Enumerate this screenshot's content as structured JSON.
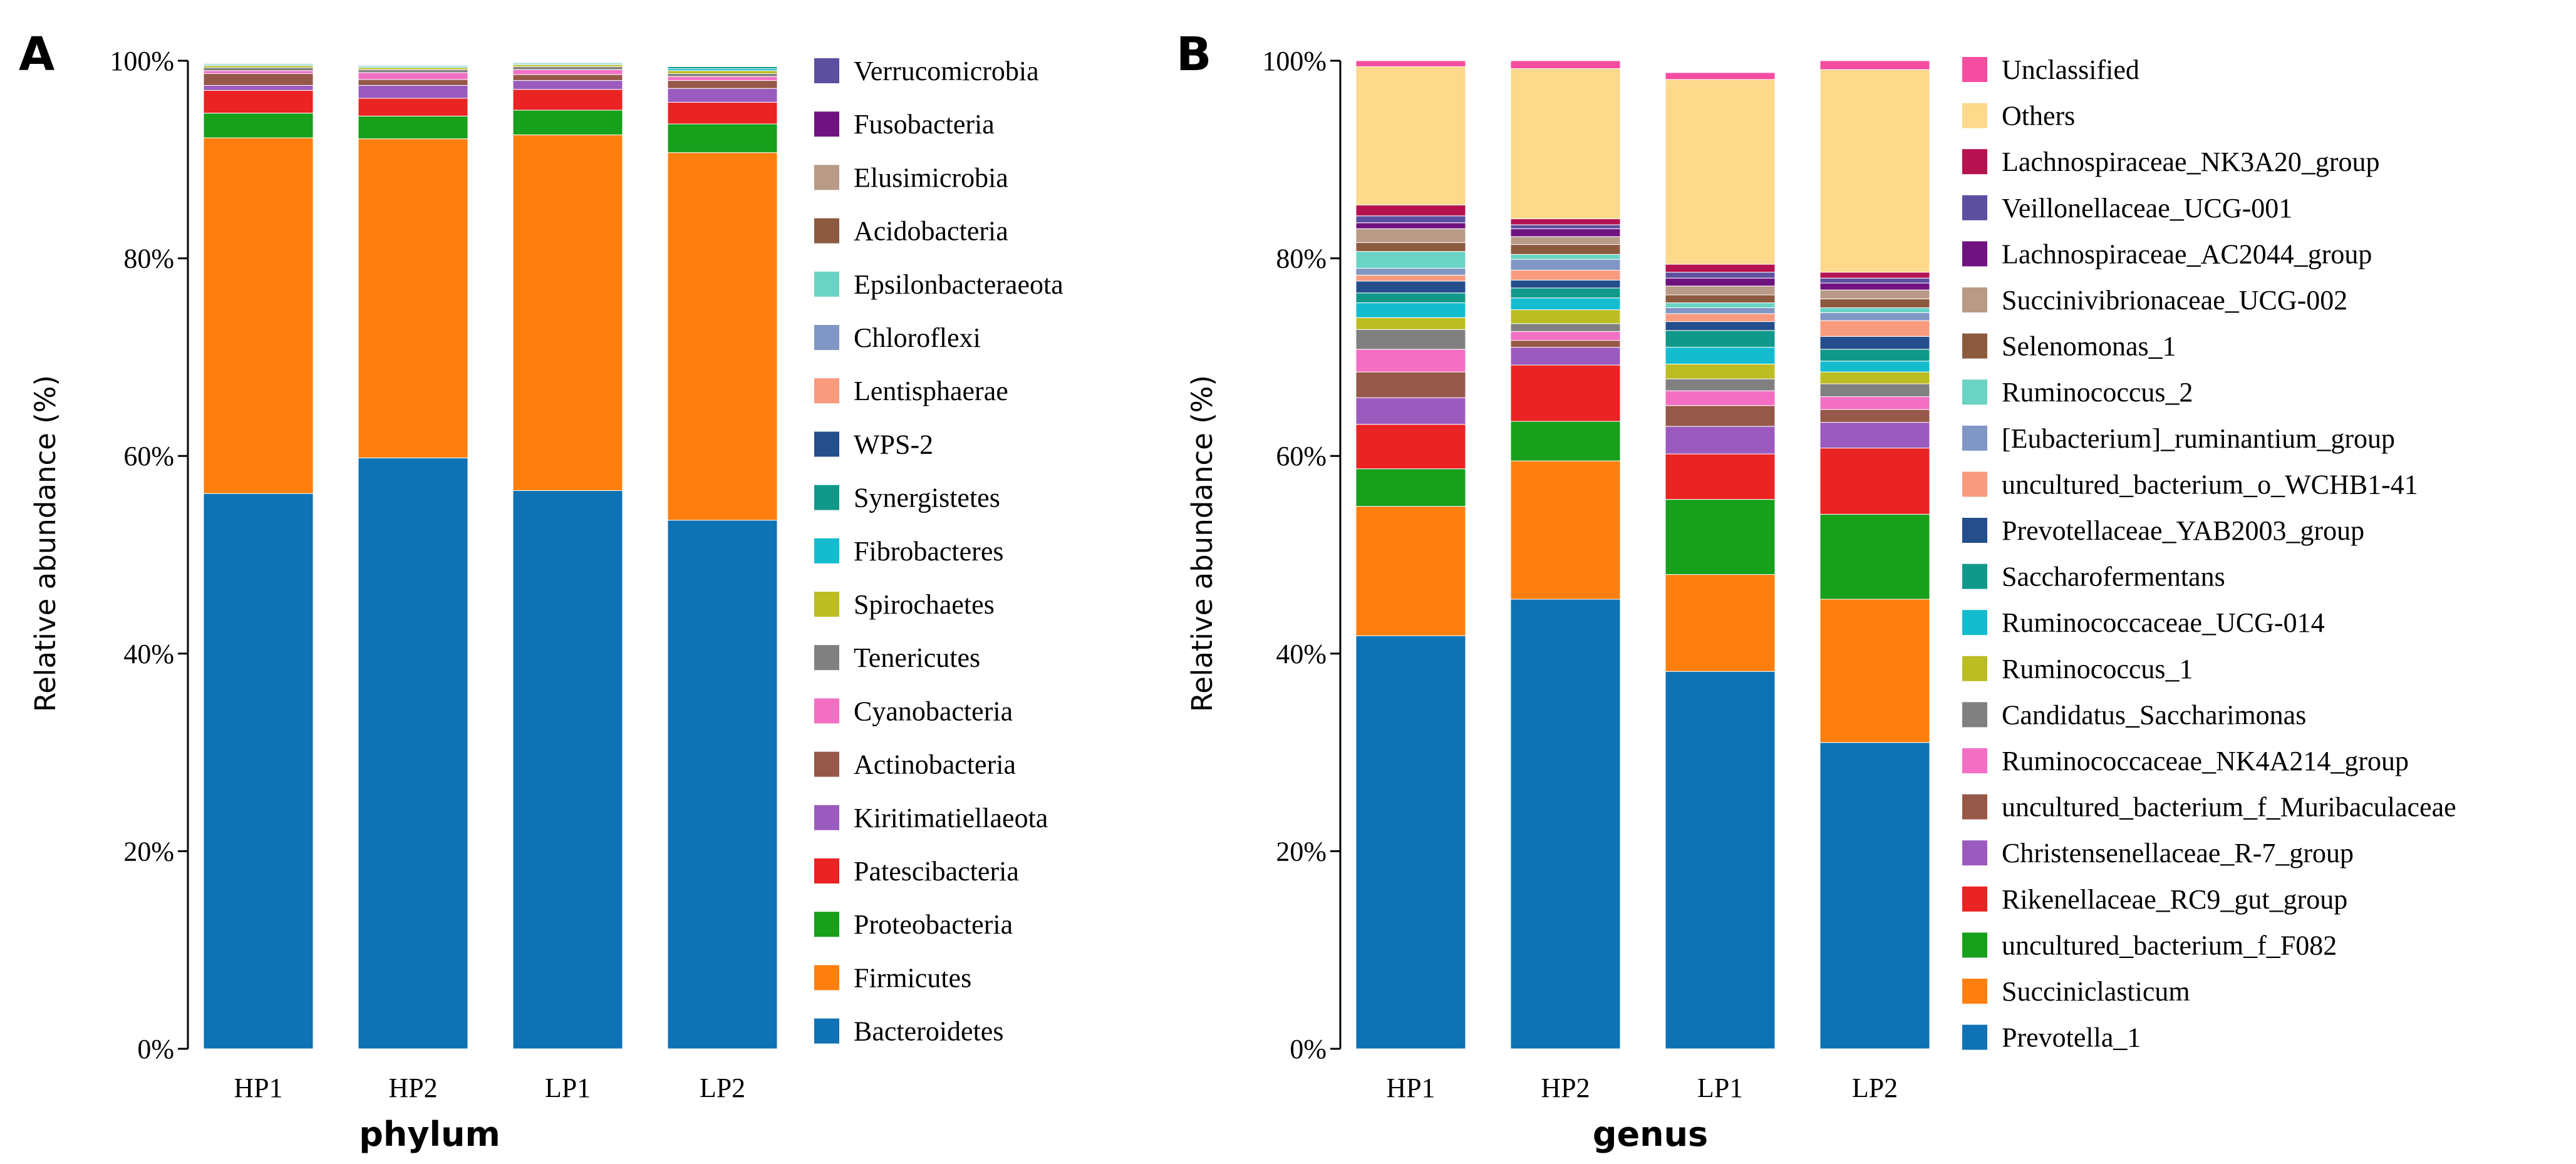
{
  "chart_data": [
    {
      "panel": "A",
      "type": "bar",
      "stacked": true,
      "xlabel": "phylum",
      "ylabel": "Relative abundance (%)",
      "ylim": [
        0,
        100
      ],
      "yticks": [
        0,
        20,
        40,
        60,
        80,
        100
      ],
      "ytick_labels": [
        "0%",
        "20%",
        "40%",
        "60%",
        "80%",
        "100%"
      ],
      "categories": [
        "HP1",
        "HP2",
        "LP1",
        "LP2"
      ],
      "series": [
        {
          "name": "Bacteroidetes",
          "color": "#0e72b5",
          "values": [
            56.2,
            59.8,
            56.5,
            53.5
          ]
        },
        {
          "name": "Firmicutes",
          "color": "#ff7f0e",
          "values": [
            36.0,
            32.3,
            36.0,
            37.2
          ]
        },
        {
          "name": "Proteobacteria",
          "color": "#16a01b",
          "values": [
            2.5,
            2.3,
            2.5,
            2.9
          ]
        },
        {
          "name": "Patescibacteria",
          "color": "#ea2323",
          "values": [
            2.3,
            1.8,
            2.1,
            2.2
          ]
        },
        {
          "name": "Kiritimatiellaeota",
          "color": "#9b5bbe",
          "values": [
            0.5,
            1.3,
            0.9,
            1.4
          ]
        },
        {
          "name": "Actinobacteria",
          "color": "#965848",
          "values": [
            1.2,
            0.6,
            0.6,
            0.8
          ]
        },
        {
          "name": "Cyanobacteria",
          "color": "#f26fc4",
          "values": [
            0.3,
            0.7,
            0.5,
            0.4
          ]
        },
        {
          "name": "Tenericutes",
          "color": "#808080",
          "values": [
            0.3,
            0.3,
            0.3,
            0.3
          ]
        },
        {
          "name": "Spirochaetes",
          "color": "#bcbd22",
          "values": [
            0.2,
            0.2,
            0.2,
            0.3
          ]
        },
        {
          "name": "Fibrobacteres",
          "color": "#14bccf",
          "values": [
            0.1,
            0.1,
            0.1,
            0.2
          ]
        },
        {
          "name": "Synergistetes",
          "color": "#10998a",
          "values": [
            0.1,
            0.1,
            0.1,
            0.2
          ]
        },
        {
          "name": "WPS-2",
          "color": "#244e8c",
          "values": [
            0.05,
            0.05,
            0.05,
            0.05
          ]
        },
        {
          "name": "Lentisphaerae",
          "color": "#f89a7e",
          "values": [
            0.05,
            0.05,
            0.05,
            0.05
          ]
        },
        {
          "name": "Chloroflexi",
          "color": "#8096c4",
          "values": [
            0.05,
            0.05,
            0.05,
            0.05
          ]
        },
        {
          "name": "Epsilonbacteraeota",
          "color": "#6ad3c4",
          "values": [
            0.05,
            0.05,
            0.05,
            0.05
          ]
        },
        {
          "name": "Acidobacteria",
          "color": "#8b5a3f",
          "values": [
            0.05,
            0.05,
            0.05,
            0.05
          ]
        },
        {
          "name": "Elusimicrobia",
          "color": "#b89a86",
          "values": [
            0.05,
            0.05,
            0.05,
            0.05
          ]
        },
        {
          "name": "Fusobacteria",
          "color": "#6f1380",
          "values": [
            0.05,
            0.05,
            0.05,
            0.05
          ]
        },
        {
          "name": "Verrucomicrobia",
          "color": "#5d4fa0",
          "values": [
            0.05,
            0.05,
            0.05,
            0.05
          ]
        }
      ]
    },
    {
      "panel": "B",
      "type": "bar",
      "stacked": true,
      "xlabel": "genus",
      "ylabel": "Relative abundance (%)",
      "ylim": [
        0,
        100
      ],
      "yticks": [
        0,
        20,
        40,
        60,
        80,
        100
      ],
      "ytick_labels": [
        "0%",
        "20%",
        "40%",
        "60%",
        "80%",
        "100%"
      ],
      "categories": [
        "HP1",
        "HP2",
        "LP1",
        "LP2"
      ],
      "series": [
        {
          "name": "Prevotella_1",
          "color": "#0e72b5",
          "values": [
            41.8,
            45.5,
            38.2,
            31.0
          ]
        },
        {
          "name": "Succiniclasticum",
          "color": "#ff7f0e",
          "values": [
            13.1,
            14.0,
            9.8,
            14.5
          ]
        },
        {
          "name": "uncultured_bacterium_f_F082",
          "color": "#16a01b",
          "values": [
            3.8,
            4.0,
            7.6,
            8.6
          ]
        },
        {
          "name": "Rikenellaceae_RC9_gut_group",
          "color": "#ea2323",
          "values": [
            4.5,
            5.7,
            4.6,
            6.7
          ]
        },
        {
          "name": "Christensenellaceae_R-7_group",
          "color": "#9b5bbe",
          "values": [
            2.7,
            1.8,
            2.8,
            2.6
          ]
        },
        {
          "name": "uncultured_bacterium_f_Muribaculaceae",
          "color": "#965848",
          "values": [
            2.6,
            0.7,
            2.1,
            1.3
          ]
        },
        {
          "name": "Ruminococcaceae_NK4A214_group",
          "color": "#f26fc4",
          "values": [
            2.3,
            0.9,
            1.5,
            1.3
          ]
        },
        {
          "name": "Candidatus_Saccharimonas",
          "color": "#808080",
          "values": [
            2.0,
            0.8,
            1.2,
            1.3
          ]
        },
        {
          "name": "Ruminococcus_1",
          "color": "#bcbd22",
          "values": [
            1.2,
            1.4,
            1.5,
            1.2
          ]
        },
        {
          "name": "Ruminococcaceae_UCG-014",
          "color": "#14bccf",
          "values": [
            1.5,
            1.2,
            1.7,
            1.1
          ]
        },
        {
          "name": "Saccharofermentans",
          "color": "#10998a",
          "values": [
            1.0,
            1.0,
            1.7,
            1.2
          ]
        },
        {
          "name": "Prevotellaceae_YAB2003_group",
          "color": "#244e8c",
          "values": [
            1.2,
            0.8,
            0.9,
            1.3
          ]
        },
        {
          "name": "uncultured_bacterium_o_WCHB1-41",
          "color": "#f89a7e",
          "values": [
            0.6,
            1.0,
            0.8,
            1.6
          ]
        },
        {
          "name": "[Eubacterium]_ruminantium_group",
          "color": "#8096c4",
          "values": [
            0.7,
            1.1,
            0.6,
            0.8
          ]
        },
        {
          "name": "Ruminococcus_2",
          "color": "#6ad3c4",
          "values": [
            1.7,
            0.5,
            0.5,
            0.5
          ]
        },
        {
          "name": "Selenomonas_1",
          "color": "#8b5a3f",
          "values": [
            0.9,
            1.0,
            0.8,
            0.9
          ]
        },
        {
          "name": "Succinivibrionaceae_UCG-002",
          "color": "#b89a86",
          "values": [
            1.4,
            0.8,
            0.9,
            0.9
          ]
        },
        {
          "name": "Lachnospiraceae_AC2044_group",
          "color": "#6f1380",
          "values": [
            0.6,
            0.8,
            0.8,
            0.7
          ]
        },
        {
          "name": "Veillonellaceae_UCG-001",
          "color": "#5d4fa0",
          "values": [
            0.7,
            0.4,
            0.6,
            0.5
          ]
        },
        {
          "name": "Lachnospiraceae_NK3A20_group",
          "color": "#b5124f",
          "values": [
            1.1,
            0.6,
            0.8,
            0.6
          ]
        },
        {
          "name": "Others",
          "color": "#fcd98b",
          "values": [
            14.0,
            15.2,
            18.7,
            20.5
          ]
        },
        {
          "name": "Unclassified",
          "color": "#f54da0",
          "values": [
            0.6,
            0.8,
            0.7,
            0.9
          ]
        }
      ]
    }
  ]
}
